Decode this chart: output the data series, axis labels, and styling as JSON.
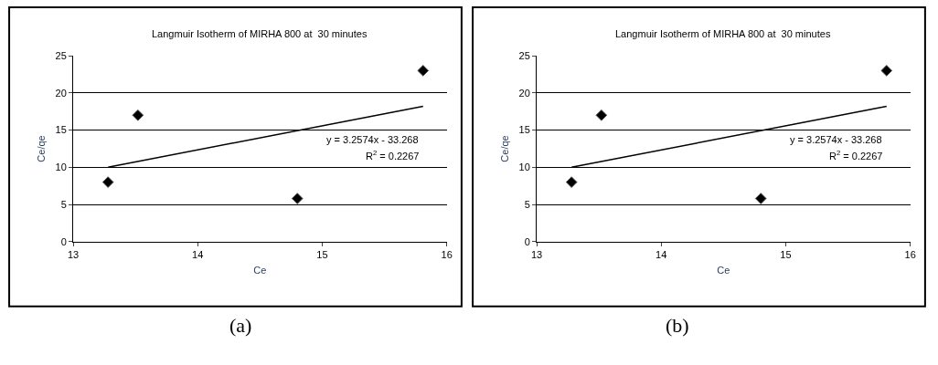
{
  "chart_data": [
    {
      "type": "scatter",
      "title": "Langmuir Isotherm of MIRHA 800 at  30 minutes",
      "xlabel": "Ce",
      "ylabel": "Ce/qe",
      "xlim": [
        13,
        16
      ],
      "xticks": [
        13,
        14,
        15,
        16
      ],
      "ylim": [
        0,
        25
      ],
      "yticks": [
        0,
        5,
        10,
        15,
        20,
        25
      ],
      "grid": "y",
      "series": [
        {
          "color": "#000000",
          "marker": "diamond",
          "x": [
            13.28,
            13.52,
            14.8,
            15.81
          ],
          "values": [
            8,
            17,
            5.8,
            23
          ]
        },
        {
          "type": "line",
          "color": "#000000",
          "x": [
            13.28,
            15.81
          ],
          "values": [
            10,
            18.2
          ]
        }
      ],
      "annotations": [
        "y = 3.2574x - 33.268",
        "R$^{2}$ = 0.2267",
        "(a)"
      ]
    },
    {
      "type": "scatter",
      "title": "Langmuir Isotherm of MIRHA 800 at  30 minutes",
      "xlabel": "Ce",
      "ylabel": "Ce/qe",
      "xlim": [
        13,
        16
      ],
      "xticks": [
        13,
        14,
        15,
        16
      ],
      "ylim": [
        0,
        25
      ],
      "yticks": [
        0,
        5,
        10,
        15,
        20,
        25
      ],
      "grid": "y",
      "series": [
        {
          "color": "#000000",
          "marker": "diamond",
          "x": [
            13.28,
            13.52,
            14.8,
            15.81
          ],
          "values": [
            8,
            17,
            5.8,
            23
          ]
        },
        {
          "type": "line",
          "color": "#000000",
          "x": [
            13.28,
            15.81
          ],
          "values": [
            10,
            18.2
          ]
        }
      ],
      "annotations": [
        "y = 3.2574x - 33.268",
        "R$^{2}$ = 0.2267",
        "(b)"
      ]
    }
  ]
}
